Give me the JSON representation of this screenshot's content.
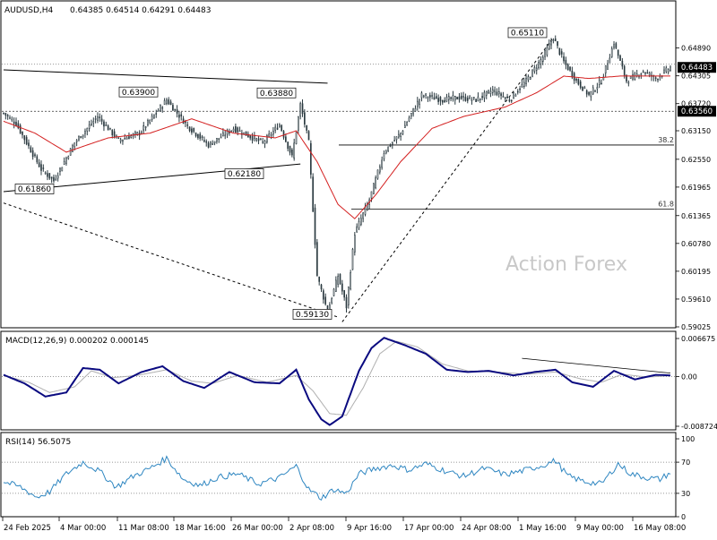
{
  "header": {
    "symbol": "AUDUSD,H4",
    "ohlc": "0.64385 0.64514 0.64291 0.64483"
  },
  "watermark": "Action Forex",
  "colors": {
    "background": "#ffffff",
    "candle": "#2b3a40",
    "ma": "#d42020",
    "trendline": "#000000",
    "macd_line": "#0a0a80",
    "macd_signal": "#b0b0b0",
    "rsi_line": "#2e86c1",
    "grid_dotted": "#888888",
    "price_box": "#000000",
    "watermark": "#c8c8c8"
  },
  "chart_data": [
    {
      "type": "candlestick",
      "panel": "price",
      "ylim": [
        0.59025,
        0.65335
      ],
      "y_ticks": [
        "0.64890",
        "0.64305",
        "0.63720",
        "0.63150",
        "0.62550",
        "0.61965",
        "0.61365",
        "0.60780",
        "0.60195",
        "0.59610",
        "0.59025"
      ],
      "x_ticks": [
        "24 Feb 2025",
        "4 Mar 00:00",
        "11 Mar 08:00",
        "18 Mar 16:00",
        "26 Mar 00:00",
        "2 Apr 08:00",
        "9 Apr 16:00",
        "17 Apr 00:00",
        "24 Apr 08:00",
        "1 May 16:00",
        "9 May 00:00",
        "16 May 08:00"
      ],
      "n_bars": 320,
      "key_points": [
        {
          "bar": 0,
          "price": 0.6352
        },
        {
          "bar": 6,
          "price": 0.633
        },
        {
          "bar": 18,
          "price": 0.6234
        },
        {
          "bar": 24,
          "price": 0.621
        },
        {
          "bar": 34,
          "price": 0.629
        },
        {
          "bar": 45,
          "price": 0.6345
        },
        {
          "bar": 55,
          "price": 0.6295
        },
        {
          "bar": 65,
          "price": 0.631
        },
        {
          "bar": 78,
          "price": 0.638
        },
        {
          "bar": 88,
          "price": 0.6325
        },
        {
          "bar": 98,
          "price": 0.6285
        },
        {
          "bar": 110,
          "price": 0.632
        },
        {
          "bar": 124,
          "price": 0.629
        },
        {
          "bar": 132,
          "price": 0.6328
        },
        {
          "bar": 138,
          "price": 0.626
        },
        {
          "bar": 142,
          "price": 0.637
        },
        {
          "bar": 146,
          "price": 0.629
        },
        {
          "bar": 150,
          "price": 0.601
        },
        {
          "bar": 155,
          "price": 0.5935
        },
        {
          "bar": 160,
          "price": 0.601
        },
        {
          "bar": 164,
          "price": 0.5945
        },
        {
          "bar": 168,
          "price": 0.61
        },
        {
          "bar": 175,
          "price": 0.617
        },
        {
          "bar": 182,
          "price": 0.627
        },
        {
          "bar": 190,
          "price": 0.631
        },
        {
          "bar": 200,
          "price": 0.639
        },
        {
          "bar": 210,
          "price": 0.638
        },
        {
          "bar": 218,
          "price": 0.6385
        },
        {
          "bar": 226,
          "price": 0.638
        },
        {
          "bar": 234,
          "price": 0.64
        },
        {
          "bar": 242,
          "price": 0.638
        },
        {
          "bar": 250,
          "price": 0.642
        },
        {
          "bar": 258,
          "price": 0.647
        },
        {
          "bar": 263,
          "price": 0.6511
        },
        {
          "bar": 268,
          "price": 0.646
        },
        {
          "bar": 274,
          "price": 0.642
        },
        {
          "bar": 280,
          "price": 0.639
        },
        {
          "bar": 286,
          "price": 0.642
        },
        {
          "bar": 292,
          "price": 0.65
        },
        {
          "bar": 298,
          "price": 0.642
        },
        {
          "bar": 306,
          "price": 0.644
        },
        {
          "bar": 312,
          "price": 0.6425
        },
        {
          "bar": 319,
          "price": 0.6448
        }
      ],
      "moving_average_points": [
        {
          "bar": 0,
          "price": 0.6335
        },
        {
          "bar": 15,
          "price": 0.631
        },
        {
          "bar": 30,
          "price": 0.627
        },
        {
          "bar": 50,
          "price": 0.63
        },
        {
          "bar": 70,
          "price": 0.631
        },
        {
          "bar": 90,
          "price": 0.634
        },
        {
          "bar": 110,
          "price": 0.631
        },
        {
          "bar": 130,
          "price": 0.63
        },
        {
          "bar": 140,
          "price": 0.6315
        },
        {
          "bar": 150,
          "price": 0.625
        },
        {
          "bar": 160,
          "price": 0.616
        },
        {
          "bar": 168,
          "price": 0.613
        },
        {
          "bar": 178,
          "price": 0.618
        },
        {
          "bar": 190,
          "price": 0.625
        },
        {
          "bar": 205,
          "price": 0.632
        },
        {
          "bar": 220,
          "price": 0.6345
        },
        {
          "bar": 240,
          "price": 0.6365
        },
        {
          "bar": 255,
          "price": 0.6395
        },
        {
          "bar": 268,
          "price": 0.643
        },
        {
          "bar": 280,
          "price": 0.6425
        },
        {
          "bar": 295,
          "price": 0.643
        },
        {
          "bar": 319,
          "price": 0.643
        }
      ],
      "price_labels": [
        {
          "text": "0.63900",
          "price": 0.639
        },
        {
          "text": "0.63880",
          "price": 0.6388
        },
        {
          "text": "0.62180",
          "price": 0.6218
        },
        {
          "text": "0.61860",
          "price": 0.6186
        },
        {
          "text": "0.59130",
          "price": 0.5913
        },
        {
          "text": "0.65110",
          "price": 0.6511
        }
      ],
      "right_axis_boxes": [
        {
          "text": "0.64483",
          "price": 0.64483
        },
        {
          "text": "0.63560",
          "price": 0.6356
        }
      ],
      "fib_levels": [
        {
          "text": "38.2",
          "price": 0.6285
        },
        {
          "text": "61.8",
          "price": 0.615
        }
      ],
      "dotted_level": 0.6455
    },
    {
      "type": "line",
      "panel": "macd",
      "title": "MACD(12,26,9) 0.000202 0.000145",
      "ylim": [
        -0.008724,
        0.006675
      ],
      "y_ticks": [
        "0.006675",
        "0.00",
        "-0.008724"
      ],
      "series": [
        {
          "points": [
            {
              "bar": 0,
              "value": 0.0003
            },
            {
              "bar": 10,
              "value": -0.0012
            },
            {
              "bar": 20,
              "value": -0.0035
            },
            {
              "bar": 30,
              "value": -0.0028
            },
            {
              "bar": 38,
              "value": 0.0015
            },
            {
              "bar": 46,
              "value": 0.0012
            },
            {
              "bar": 55,
              "value": -0.0012
            },
            {
              "bar": 66,
              "value": 0.0008
            },
            {
              "bar": 76,
              "value": 0.0018
            },
            {
              "bar": 86,
              "value": -0.0008
            },
            {
              "bar": 96,
              "value": -0.002
            },
            {
              "bar": 108,
              "value": 0.0008
            },
            {
              "bar": 120,
              "value": -0.001
            },
            {
              "bar": 132,
              "value": -0.0012
            },
            {
              "bar": 140,
              "value": 0.0012
            },
            {
              "bar": 146,
              "value": -0.004
            },
            {
              "bar": 152,
              "value": -0.0075
            },
            {
              "bar": 156,
              "value": -0.0085
            },
            {
              "bar": 162,
              "value": -0.007
            },
            {
              "bar": 170,
              "value": 0.001
            },
            {
              "bar": 176,
              "value": 0.005
            },
            {
              "bar": 182,
              "value": 0.0068
            },
            {
              "bar": 192,
              "value": 0.0055
            },
            {
              "bar": 202,
              "value": 0.004
            },
            {
              "bar": 212,
              "value": 0.0012
            },
            {
              "bar": 222,
              "value": 0.0008
            },
            {
              "bar": 232,
              "value": 0.001
            },
            {
              "bar": 244,
              "value": 0.0002
            },
            {
              "bar": 254,
              "value": 0.0008
            },
            {
              "bar": 264,
              "value": 0.0012
            },
            {
              "bar": 272,
              "value": -0.001
            },
            {
              "bar": 282,
              "value": -0.0018
            },
            {
              "bar": 292,
              "value": 0.001
            },
            {
              "bar": 302,
              "value": -0.0005
            },
            {
              "bar": 312,
              "value": 0.0003
            },
            {
              "bar": 319,
              "value": 0.0002
            }
          ]
        },
        {
          "points": [
            {
              "bar": 0,
              "value": 0.0002
            },
            {
              "bar": 12,
              "value": -0.001
            },
            {
              "bar": 22,
              "value": -0.0028
            },
            {
              "bar": 34,
              "value": -0.0018
            },
            {
              "bar": 42,
              "value": 0.001
            },
            {
              "bar": 52,
              "value": -0.0002
            },
            {
              "bar": 64,
              "value": 0.0002
            },
            {
              "bar": 78,
              "value": 0.0012
            },
            {
              "bar": 90,
              "value": -0.0008
            },
            {
              "bar": 100,
              "value": -0.0012
            },
            {
              "bar": 112,
              "value": 0.0002
            },
            {
              "bar": 126,
              "value": -0.001
            },
            {
              "bar": 140,
              "value": 0.0002
            },
            {
              "bar": 148,
              "value": -0.0025
            },
            {
              "bar": 156,
              "value": -0.0065
            },
            {
              "bar": 164,
              "value": -0.0068
            },
            {
              "bar": 172,
              "value": -0.002
            },
            {
              "bar": 180,
              "value": 0.004
            },
            {
              "bar": 188,
              "value": 0.0062
            },
            {
              "bar": 198,
              "value": 0.0052
            },
            {
              "bar": 210,
              "value": 0.0022
            },
            {
              "bar": 222,
              "value": 0.001
            },
            {
              "bar": 236,
              "value": 0.0008
            },
            {
              "bar": 250,
              "value": 0.0004
            },
            {
              "bar": 264,
              "value": 0.0008
            },
            {
              "bar": 276,
              "value": -0.0004
            },
            {
              "bar": 286,
              "value": -0.001
            },
            {
              "bar": 296,
              "value": 0.0004
            },
            {
              "bar": 308,
              "value": -0.0001
            },
            {
              "bar": 319,
              "value": 0.000145
            }
          ]
        }
      ],
      "divergence_line": [
        {
          "bar": 248,
          "value": 0.0032
        },
        {
          "bar": 319,
          "value": 0.0006
        }
      ]
    },
    {
      "type": "line",
      "panel": "rsi",
      "title": "RSI(14) 56.5075",
      "ylim": [
        0,
        100
      ],
      "y_ticks": [
        "100",
        "70",
        "30",
        "0"
      ],
      "levels": [
        70,
        30
      ],
      "points": [
        {
          "bar": 0,
          "value": 45
        },
        {
          "bar": 8,
          "value": 38
        },
        {
          "bar": 16,
          "value": 25
        },
        {
          "bar": 22,
          "value": 32
        },
        {
          "bar": 30,
          "value": 55
        },
        {
          "bar": 38,
          "value": 70
        },
        {
          "bar": 46,
          "value": 58
        },
        {
          "bar": 54,
          "value": 38
        },
        {
          "bar": 62,
          "value": 52
        },
        {
          "bar": 70,
          "value": 62
        },
        {
          "bar": 78,
          "value": 75
        },
        {
          "bar": 86,
          "value": 48
        },
        {
          "bar": 94,
          "value": 40
        },
        {
          "bar": 102,
          "value": 50
        },
        {
          "bar": 112,
          "value": 55
        },
        {
          "bar": 122,
          "value": 42
        },
        {
          "bar": 132,
          "value": 50
        },
        {
          "bar": 140,
          "value": 65
        },
        {
          "bar": 146,
          "value": 35
        },
        {
          "bar": 152,
          "value": 24
        },
        {
          "bar": 158,
          "value": 35
        },
        {
          "bar": 164,
          "value": 30
        },
        {
          "bar": 170,
          "value": 55
        },
        {
          "bar": 178,
          "value": 62
        },
        {
          "bar": 186,
          "value": 66
        },
        {
          "bar": 194,
          "value": 60
        },
        {
          "bar": 202,
          "value": 68
        },
        {
          "bar": 212,
          "value": 58
        },
        {
          "bar": 220,
          "value": 52
        },
        {
          "bar": 230,
          "value": 62
        },
        {
          "bar": 240,
          "value": 54
        },
        {
          "bar": 250,
          "value": 60
        },
        {
          "bar": 258,
          "value": 66
        },
        {
          "bar": 264,
          "value": 72
        },
        {
          "bar": 270,
          "value": 52
        },
        {
          "bar": 278,
          "value": 45
        },
        {
          "bar": 286,
          "value": 42
        },
        {
          "bar": 294,
          "value": 68
        },
        {
          "bar": 300,
          "value": 55
        },
        {
          "bar": 308,
          "value": 50
        },
        {
          "bar": 314,
          "value": 48
        },
        {
          "bar": 319,
          "value": 56.5
        }
      ]
    }
  ]
}
